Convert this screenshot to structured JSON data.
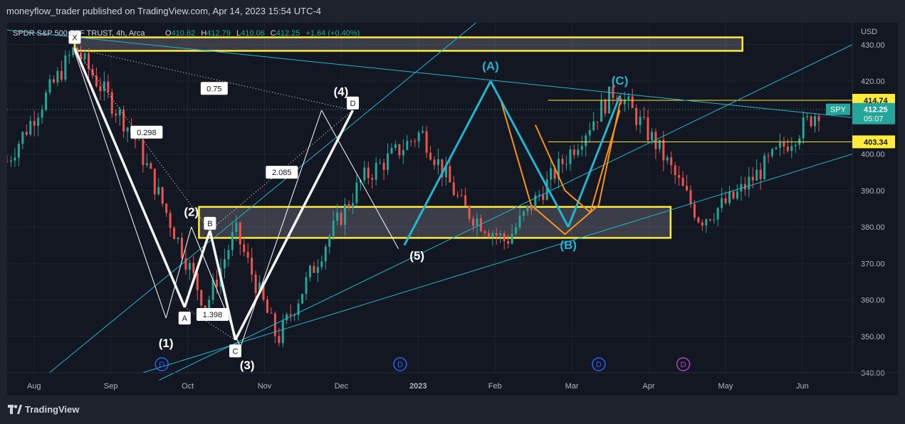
{
  "header": {
    "published": "moneyflow_trader published on TradingView.com, Apr 14, 2023 15:54 UTC-4"
  },
  "legend": {
    "symbol": "SPDR S&P 500 ETF TRUST, 4h, Arca",
    "o_label": "O",
    "o_value": "410.62",
    "h_label": "H",
    "h_value": "412.79",
    "l_label": "L",
    "l_value": "410.06",
    "c_label": "C",
    "c_value": "412.25",
    "change": "+1.64 (+0.40%)"
  },
  "footer": {
    "brand": "TradingView"
  },
  "colors": {
    "background": "#131722",
    "up": "#26a69a",
    "down": "#ef5350",
    "zone": "#ffeb3b",
    "cyan": "#22b5d0",
    "orange": "#f7931e",
    "white": "#ffffff"
  },
  "chart_data": {
    "type": "candlestick",
    "symbol": "SPY",
    "interval": "4h",
    "ylabel": "USD",
    "ylim": [
      340,
      436
    ],
    "y_ticks": [
      "430.00",
      "420.00",
      "410.00",
      "400.00",
      "390.00",
      "380.00",
      "370.00",
      "360.00",
      "350.00",
      "340.00"
    ],
    "x_ticks": [
      "Aug",
      "Sep",
      "Oct",
      "Nov",
      "Dec",
      "2023",
      "Feb",
      "Mar",
      "Apr",
      "May",
      "Jun"
    ],
    "price_badges": [
      {
        "label": "414.74",
        "value": 414.74
      },
      {
        "label": "403.34",
        "value": 403.34
      }
    ],
    "last_price": {
      "symbol": "SPY",
      "value": "412.25",
      "countdown": "05:07"
    },
    "wave_labels": [
      "(1)",
      "(2)",
      "(3)",
      "(4)",
      "(5)",
      "(A)",
      "(B)",
      "(C)"
    ],
    "harmonic_points": [
      "X",
      "A",
      "B",
      "C",
      "D"
    ],
    "fib_ratios": [
      "0.75",
      "0.298",
      "2.085",
      "1.398"
    ],
    "event_markers": [
      "D",
      "D",
      "D",
      "D"
    ],
    "overview_path": [
      {
        "t": 0.0,
        "p": 398
      },
      {
        "t": 0.08,
        "p": 429
      },
      {
        "t": 0.15,
        "p": 405
      },
      {
        "t": 0.21,
        "p": 372
      },
      {
        "t": 0.235,
        "p": 358
      },
      {
        "t": 0.27,
        "p": 379
      },
      {
        "t": 0.32,
        "p": 349
      },
      {
        "t": 0.38,
        "p": 377
      },
      {
        "t": 0.42,
        "p": 393
      },
      {
        "t": 0.49,
        "p": 406
      },
      {
        "t": 0.54,
        "p": 385
      },
      {
        "t": 0.59,
        "p": 376
      },
      {
        "t": 0.63,
        "p": 389
      },
      {
        "t": 0.72,
        "p": 418
      },
      {
        "t": 0.77,
        "p": 402
      },
      {
        "t": 0.82,
        "p": 382
      },
      {
        "t": 0.86,
        "p": 388
      },
      {
        "t": 0.91,
        "p": 400
      },
      {
        "t": 0.96,
        "p": 412
      }
    ]
  }
}
